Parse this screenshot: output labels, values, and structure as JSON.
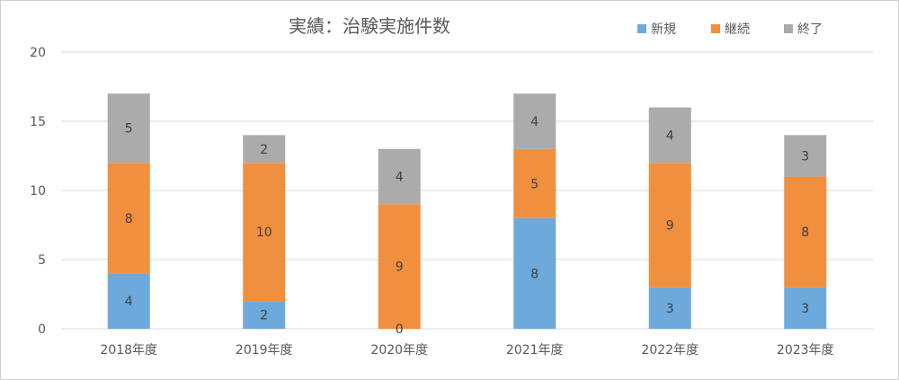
{
  "chart_data": {
    "type": "bar",
    "stacked": true,
    "title": "実績：治験実施件数",
    "categories": [
      "2018年度",
      "2019年度",
      "2020年度",
      "2021年度",
      "2022年度",
      "2023年度"
    ],
    "series": [
      {
        "name": "新規",
        "color": "#6ea9dc",
        "values": [
          4,
          2,
          0,
          8,
          3,
          3
        ]
      },
      {
        "name": "継続",
        "color": "#f08f3e",
        "values": [
          8,
          10,
          9,
          5,
          9,
          8
        ]
      },
      {
        "name": "終了",
        "color": "#ababab",
        "values": [
          5,
          2,
          4,
          4,
          4,
          3
        ]
      }
    ],
    "ylim": [
      0,
      20
    ],
    "yticks": [
      "0",
      "5",
      "10",
      "15",
      "20"
    ],
    "grid": true,
    "legend": "top-right",
    "xlabel": "",
    "ylabel": ""
  }
}
